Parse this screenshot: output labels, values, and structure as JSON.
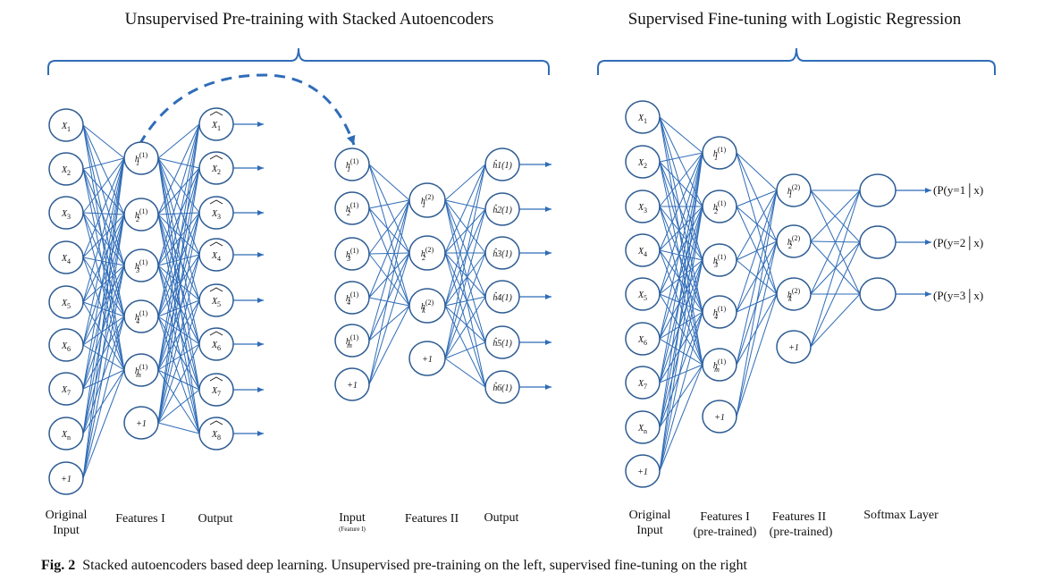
{
  "titles": {
    "left": "Unsupervised Pre-training with Stacked Autoencoders",
    "right": "Supervised Fine-tuning with Logistic Regression"
  },
  "layer_labels": {
    "left_input": [
      "Original",
      "Input"
    ],
    "left_features1": "Features I",
    "left_output1": "Output",
    "mid_input": "Input",
    "mid_input_sub": "(Feature I)",
    "mid_features2": "Features II",
    "mid_output2": "Output",
    "right_input": [
      "Original",
      "Input"
    ],
    "right_features1": [
      "Features I",
      "(pre-trained)"
    ],
    "right_features2": [
      "Features II",
      "(pre-trained)"
    ],
    "right_softmax": "Softmax Layer"
  },
  "nodes": {
    "input": [
      "X1",
      "X2",
      "X3",
      "X4",
      "X5",
      "X6",
      "X7",
      "Xn",
      "+1"
    ],
    "features1": [
      "h1(1)",
      "h2(1)",
      "h3(1)",
      "h4(1)",
      "hm(1)",
      "+1"
    ],
    "output1": [
      "X̂1",
      "X̂2",
      "X̂3",
      "X̂4",
      "X̂5",
      "X̂6",
      "X̂7",
      "X̂8"
    ],
    "ae2_input": [
      "h1(1)",
      "h2(1)",
      "h3(1)",
      "h4(1)",
      "hm(1)",
      "+1"
    ],
    "features2": [
      "h1(2)",
      "h2(2)",
      "hk(2)",
      "+1"
    ],
    "output2": [
      "ĥ1(1)",
      "ĥ2(1)",
      "ĥ3(1)",
      "ĥ4(1)",
      "ĥ5(1)",
      "ĥ6(1)"
    ],
    "ft_input": [
      "X1",
      "X2",
      "X3",
      "X4",
      "X5",
      "X6",
      "X7",
      "Xn",
      "+1"
    ],
    "ft_features1": [
      "h1(1)",
      "h2(1)",
      "h3(1)",
      "h4(1)",
      "hm(1)",
      "+1"
    ],
    "ft_features2": [
      "h1(2)",
      "h2(2)",
      "hk(2)",
      "+1"
    ],
    "softmax": [
      "",
      "",
      ""
    ]
  },
  "softmax_outputs": [
    "(P(y=1│x)",
    "(P(y=2│x)",
    "(P(y=3│x)"
  ],
  "caption": {
    "prefix": "Fig. 2",
    "text": "Stacked autoencoders based deep learning. Unsupervised pre-training on the left, supervised fine-tuning on the right"
  }
}
